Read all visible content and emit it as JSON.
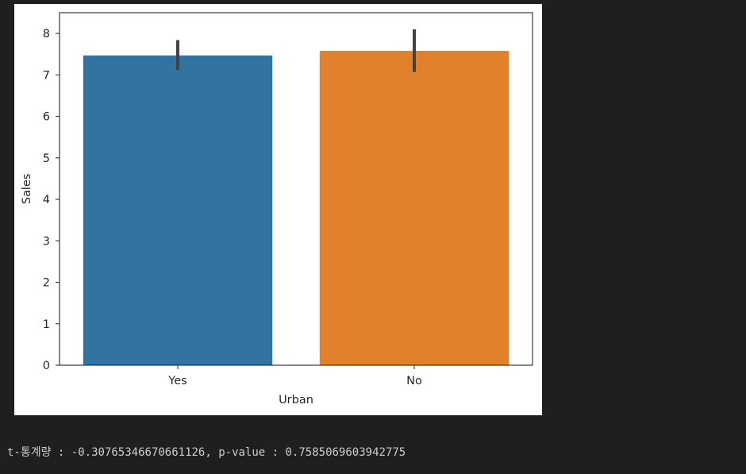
{
  "chart_data": {
    "type": "bar",
    "categories": [
      "Yes",
      "No"
    ],
    "values": [
      7.47,
      7.58
    ],
    "error_bars": [
      {
        "low": 7.12,
        "high": 7.84
      },
      {
        "low": 7.07,
        "high": 8.1
      }
    ],
    "colors": [
      "#3274a1",
      "#e1812c"
    ],
    "xlabel": "Urban",
    "ylabel": "Sales",
    "ylim": [
      0,
      8.5
    ],
    "yticks": [
      0,
      1,
      2,
      3,
      4,
      5,
      6,
      7,
      8
    ],
    "grid": false,
    "legend": "none"
  },
  "output": {
    "stdout": "t-통계량 : -0.30765346670661126, p-value : 0.7585069603942775"
  }
}
